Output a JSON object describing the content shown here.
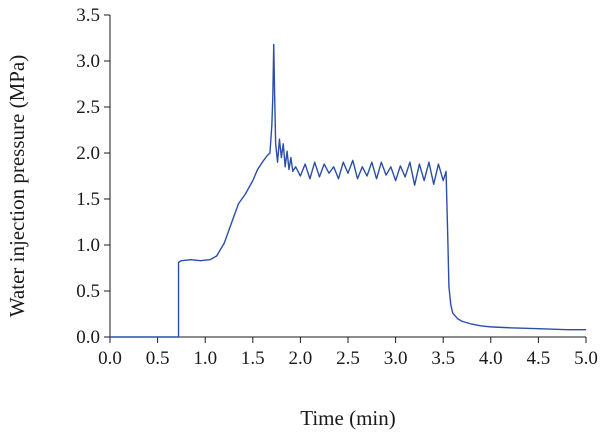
{
  "chart_data": {
    "type": "line",
    "title": "",
    "xlabel": "Time (min)",
    "ylabel": "Water injection pressure (MPa)",
    "xlim": [
      0.0,
      5.0
    ],
    "ylim": [
      0.0,
      3.5
    ],
    "x_ticks": [
      "0.0",
      "0.5",
      "1.0",
      "1.5",
      "2.0",
      "2.5",
      "3.0",
      "3.5",
      "4.0",
      "4.5",
      "5.0"
    ],
    "y_ticks": [
      "0.0",
      "0.5",
      "1.0",
      "1.5",
      "2.0",
      "2.5",
      "3.0",
      "3.5"
    ],
    "grid": false,
    "legend": "none",
    "line_color": "#2b4fa8",
    "series": [
      {
        "x": [
          0.0,
          0.5,
          0.72,
          0.72,
          0.75,
          0.85,
          0.95,
          1.05,
          1.12,
          1.2,
          1.28,
          1.35,
          1.42,
          1.5,
          1.55,
          1.6,
          1.65,
          1.68,
          1.7,
          1.71,
          1.72,
          1.73,
          1.74,
          1.76,
          1.78,
          1.8,
          1.82,
          1.84,
          1.86,
          1.88,
          1.9,
          1.92,
          1.95,
          2.0,
          2.05,
          2.1,
          2.15,
          2.2,
          2.25,
          2.3,
          2.35,
          2.4,
          2.45,
          2.5,
          2.55,
          2.6,
          2.65,
          2.7,
          2.75,
          2.8,
          2.85,
          2.9,
          2.95,
          3.0,
          3.05,
          3.1,
          3.15,
          3.2,
          3.25,
          3.3,
          3.35,
          3.4,
          3.45,
          3.5,
          3.53,
          3.55,
          3.56,
          3.58,
          3.6,
          3.65,
          3.7,
          3.8,
          3.9,
          4.0,
          4.2,
          4.5,
          4.8,
          5.0
        ],
        "y": [
          0.0,
          0.0,
          0.0,
          0.81,
          0.83,
          0.84,
          0.83,
          0.84,
          0.88,
          1.02,
          1.25,
          1.45,
          1.55,
          1.7,
          1.82,
          1.9,
          1.97,
          2.0,
          2.3,
          2.6,
          3.18,
          2.6,
          2.1,
          1.9,
          2.15,
          1.95,
          2.1,
          1.85,
          2.02,
          1.82,
          1.95,
          1.8,
          1.85,
          1.75,
          1.88,
          1.72,
          1.9,
          1.74,
          1.88,
          1.78,
          1.85,
          1.72,
          1.9,
          1.78,
          1.92,
          1.72,
          1.85,
          1.75,
          1.9,
          1.72,
          1.9,
          1.76,
          1.85,
          1.7,
          1.86,
          1.74,
          1.9,
          1.65,
          1.88,
          1.7,
          1.9,
          1.66,
          1.88,
          1.7,
          1.8,
          1.0,
          0.55,
          0.35,
          0.26,
          0.2,
          0.17,
          0.14,
          0.12,
          0.11,
          0.1,
          0.09,
          0.08,
          0.08
        ]
      }
    ]
  }
}
